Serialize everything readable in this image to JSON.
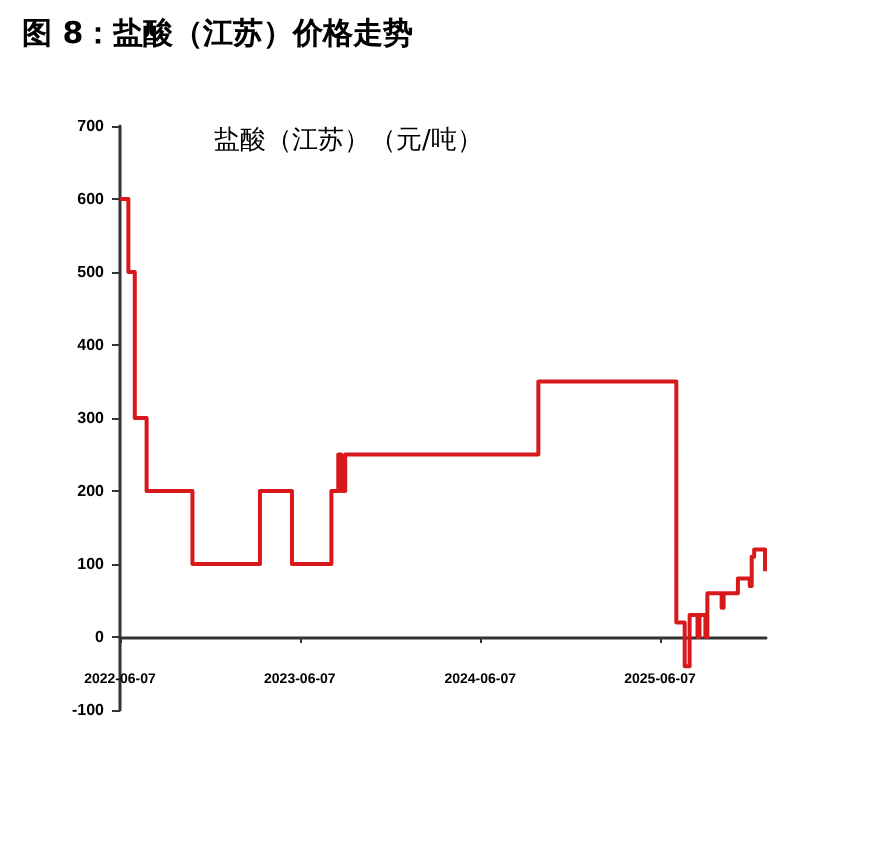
{
  "chart_data": {
    "type": "step",
    "title": "图 8：盐酸（江苏）价格走势",
    "ylabel": "盐酸（江苏）（元/吨）",
    "x": [
      "2022-06-07",
      "2022-06-24",
      "2022-07-07",
      "2022-07-31",
      "2022-11-01",
      "2023-03-18",
      "2023-05-22",
      "2023-08-10",
      "2023-08-24",
      "2023-08-30",
      "2023-09-07",
      "2024-10-03",
      "2025-07-10",
      "2025-07-27",
      "2025-08-06",
      "2025-08-22",
      "2025-08-26",
      "2025-09-07",
      "2025-09-11",
      "2025-10-10",
      "2025-10-14",
      "2025-11-12",
      "2025-12-06",
      "2025-12-10",
      "2025-12-15",
      "2026-01-06",
      "2026-01-08"
    ],
    "series": [
      {
        "color": "#d7191c",
        "values": [
          600,
          500,
          300,
          200,
          100,
          200,
          100,
          200,
          250,
          200,
          250,
          350,
          20,
          -40,
          30,
          0,
          30,
          0,
          60,
          40,
          60,
          80,
          70,
          110,
          120,
          90,
          90
        ]
      }
    ],
    "xlim": [
      "2022-06-07",
      "2026-01-08"
    ],
    "xticks": [
      "2022-06-07",
      "2023-06-07",
      "2024-06-07",
      "2025-06-07"
    ],
    "ylim": [
      -100,
      700
    ],
    "yticks": [
      -100,
      0,
      100,
      200,
      300,
      400,
      500,
      600,
      700
    ],
    "grid": false,
    "marker": "none",
    "line_style": "solid"
  }
}
